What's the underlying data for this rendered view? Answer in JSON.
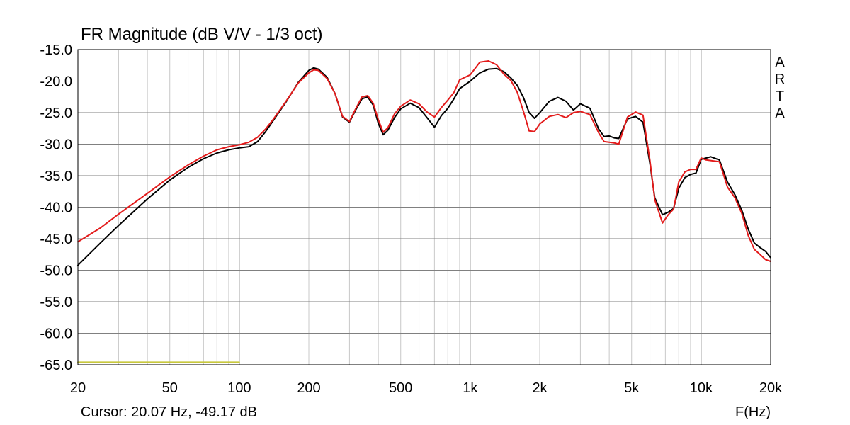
{
  "chart_data": {
    "type": "line",
    "title": "FR Magnitude (dB V/V - 1/3 oct)",
    "xlabel": "F(Hz)",
    "ylabel": "",
    "watermark": "ARTA",
    "cursor_readout": "Cursor: 20.07 Hz, -49.17 dB",
    "x_scale": "log",
    "xlim": [
      20,
      20000
    ],
    "ylim": [
      -65,
      -15
    ],
    "grid": true,
    "x_ticks": [
      {
        "v": 20,
        "label": "20"
      },
      {
        "v": 50,
        "label": "50"
      },
      {
        "v": 100,
        "label": "100"
      },
      {
        "v": 200,
        "label": "200"
      },
      {
        "v": 500,
        "label": "500"
      },
      {
        "v": 1000,
        "label": "1k"
      },
      {
        "v": 2000,
        "label": "2k"
      },
      {
        "v": 5000,
        "label": "5k"
      },
      {
        "v": 10000,
        "label": "10k"
      },
      {
        "v": 20000,
        "label": "20k"
      }
    ],
    "y_ticks": [
      {
        "v": -15,
        "label": "-15.0"
      },
      {
        "v": -20,
        "label": "-20.0"
      },
      {
        "v": -25,
        "label": "-25.0"
      },
      {
        "v": -30,
        "label": "-30.0"
      },
      {
        "v": -35,
        "label": "-35.0"
      },
      {
        "v": -40,
        "label": "-40.0"
      },
      {
        "v": -45,
        "label": "-45.0"
      },
      {
        "v": -50,
        "label": "-50.0"
      },
      {
        "v": -55,
        "label": "-55.0"
      },
      {
        "v": -60,
        "label": "-60.0"
      },
      {
        "v": -65,
        "label": "-65.0"
      }
    ],
    "series": [
      {
        "color": "#000000",
        "points": [
          [
            20,
            -49.2
          ],
          [
            25,
            -45.7
          ],
          [
            30,
            -42.9
          ],
          [
            40,
            -38.7
          ],
          [
            50,
            -35.7
          ],
          [
            60,
            -33.7
          ],
          [
            70,
            -32.3
          ],
          [
            80,
            -31.4
          ],
          [
            90,
            -30.9
          ],
          [
            100,
            -30.6
          ],
          [
            110,
            -30.4
          ],
          [
            120,
            -29.6
          ],
          [
            130,
            -28.0
          ],
          [
            140,
            -26.3
          ],
          [
            160,
            -23.2
          ],
          [
            180,
            -20.2
          ],
          [
            200,
            -18.3
          ],
          [
            210,
            -17.9
          ],
          [
            220,
            -18.1
          ],
          [
            240,
            -19.4
          ],
          [
            260,
            -22.0
          ],
          [
            280,
            -25.7
          ],
          [
            300,
            -26.5
          ],
          [
            320,
            -24.5
          ],
          [
            340,
            -22.8
          ],
          [
            360,
            -22.5
          ],
          [
            380,
            -23.8
          ],
          [
            400,
            -26.7
          ],
          [
            420,
            -28.5
          ],
          [
            440,
            -27.8
          ],
          [
            470,
            -25.8
          ],
          [
            500,
            -24.4
          ],
          [
            550,
            -23.5
          ],
          [
            600,
            -24.2
          ],
          [
            650,
            -25.8
          ],
          [
            700,
            -27.3
          ],
          [
            750,
            -25.5
          ],
          [
            800,
            -24.3
          ],
          [
            850,
            -22.8
          ],
          [
            900,
            -21.2
          ],
          [
            1000,
            -20.0
          ],
          [
            1100,
            -18.7
          ],
          [
            1200,
            -18.1
          ],
          [
            1300,
            -18.0
          ],
          [
            1400,
            -18.5
          ],
          [
            1500,
            -19.5
          ],
          [
            1600,
            -20.7
          ],
          [
            1700,
            -22.6
          ],
          [
            1800,
            -25.0
          ],
          [
            1900,
            -25.9
          ],
          [
            2000,
            -25.0
          ],
          [
            2200,
            -23.2
          ],
          [
            2400,
            -22.6
          ],
          [
            2600,
            -23.2
          ],
          [
            2800,
            -24.6
          ],
          [
            3000,
            -23.6
          ],
          [
            3300,
            -24.3
          ],
          [
            3600,
            -27.6
          ],
          [
            3800,
            -28.8
          ],
          [
            4000,
            -28.7
          ],
          [
            4200,
            -29.0
          ],
          [
            4400,
            -29.1
          ],
          [
            4600,
            -27.5
          ],
          [
            4800,
            -26.0
          ],
          [
            5200,
            -25.6
          ],
          [
            5600,
            -26.5
          ],
          [
            6000,
            -33.0
          ],
          [
            6300,
            -38.5
          ],
          [
            6800,
            -41.2
          ],
          [
            7200,
            -40.8
          ],
          [
            7600,
            -40.2
          ],
          [
            8000,
            -37.0
          ],
          [
            8500,
            -35.3
          ],
          [
            9000,
            -34.8
          ],
          [
            9500,
            -34.6
          ],
          [
            10000,
            -32.4
          ],
          [
            10500,
            -32.2
          ],
          [
            11000,
            -32.0
          ],
          [
            12000,
            -32.5
          ],
          [
            13000,
            -36.0
          ],
          [
            14000,
            -38.0
          ],
          [
            15000,
            -40.5
          ],
          [
            16000,
            -43.5
          ],
          [
            17000,
            -45.7
          ],
          [
            18000,
            -46.4
          ],
          [
            19000,
            -47.0
          ],
          [
            20000,
            -48.0
          ]
        ]
      },
      {
        "color": "#e31b1b",
        "points": [
          [
            20,
            -45.5
          ],
          [
            25,
            -43.3
          ],
          [
            30,
            -41.1
          ],
          [
            40,
            -37.8
          ],
          [
            50,
            -35.2
          ],
          [
            60,
            -33.3
          ],
          [
            70,
            -31.9
          ],
          [
            80,
            -30.9
          ],
          [
            90,
            -30.4
          ],
          [
            100,
            -30.1
          ],
          [
            110,
            -29.7
          ],
          [
            120,
            -28.9
          ],
          [
            130,
            -27.6
          ],
          [
            140,
            -26.1
          ],
          [
            160,
            -23.1
          ],
          [
            180,
            -20.3
          ],
          [
            200,
            -18.7
          ],
          [
            210,
            -18.2
          ],
          [
            220,
            -18.3
          ],
          [
            240,
            -19.6
          ],
          [
            260,
            -22.0
          ],
          [
            280,
            -25.6
          ],
          [
            300,
            -26.4
          ],
          [
            320,
            -24.3
          ],
          [
            340,
            -22.5
          ],
          [
            360,
            -22.3
          ],
          [
            380,
            -23.5
          ],
          [
            400,
            -26.1
          ],
          [
            420,
            -28.1
          ],
          [
            440,
            -27.4
          ],
          [
            470,
            -25.2
          ],
          [
            500,
            -24.0
          ],
          [
            550,
            -23.0
          ],
          [
            600,
            -23.6
          ],
          [
            650,
            -24.9
          ],
          [
            700,
            -25.7
          ],
          [
            750,
            -24.2
          ],
          [
            800,
            -23.0
          ],
          [
            850,
            -21.8
          ],
          [
            900,
            -19.8
          ],
          [
            1000,
            -19.0
          ],
          [
            1100,
            -17.0
          ],
          [
            1200,
            -16.8
          ],
          [
            1300,
            -17.4
          ],
          [
            1400,
            -18.9
          ],
          [
            1500,
            -19.9
          ],
          [
            1600,
            -21.8
          ],
          [
            1700,
            -24.8
          ],
          [
            1800,
            -27.9
          ],
          [
            1900,
            -28.0
          ],
          [
            2000,
            -26.8
          ],
          [
            2200,
            -25.6
          ],
          [
            2400,
            -25.3
          ],
          [
            2600,
            -25.8
          ],
          [
            2800,
            -25.0
          ],
          [
            3000,
            -24.8
          ],
          [
            3300,
            -25.3
          ],
          [
            3600,
            -28.2
          ],
          [
            3800,
            -29.6
          ],
          [
            4000,
            -29.7
          ],
          [
            4200,
            -29.8
          ],
          [
            4400,
            -30.0
          ],
          [
            4600,
            -27.8
          ],
          [
            4800,
            -25.7
          ],
          [
            5200,
            -24.9
          ],
          [
            5600,
            -25.4
          ],
          [
            6000,
            -32.5
          ],
          [
            6300,
            -38.8
          ],
          [
            6800,
            -42.5
          ],
          [
            7200,
            -41.2
          ],
          [
            7600,
            -40.3
          ],
          [
            8000,
            -36.0
          ],
          [
            8500,
            -34.4
          ],
          [
            9000,
            -34.0
          ],
          [
            9500,
            -34.0
          ],
          [
            10000,
            -32.2
          ],
          [
            10500,
            -32.5
          ],
          [
            11000,
            -32.6
          ],
          [
            12000,
            -32.8
          ],
          [
            13000,
            -36.8
          ],
          [
            14000,
            -38.5
          ],
          [
            15000,
            -41.0
          ],
          [
            16000,
            -44.5
          ],
          [
            17000,
            -46.7
          ],
          [
            18000,
            -47.5
          ],
          [
            19000,
            -48.3
          ],
          [
            20000,
            -48.6
          ]
        ]
      },
      {
        "color": "#c8c83c",
        "points": [
          [
            20,
            -64.6
          ],
          [
            100,
            -64.6
          ]
        ]
      }
    ]
  }
}
